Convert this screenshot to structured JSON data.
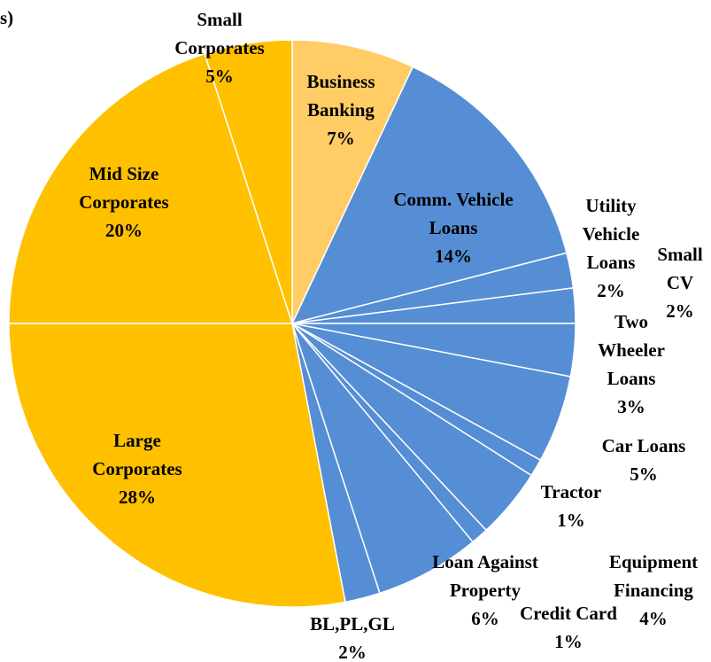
{
  "chart_data": {
    "type": "pie",
    "title": "s)",
    "categories": [
      "Business Banking",
      "Comm. Vehicle Loans",
      "Utility Vehicle Loans",
      "Small CV",
      "Two Wheeler Loans",
      "Car Loans",
      "Tractor",
      "Equipment Financing",
      "Credit Card",
      "Loan Against Property",
      "BL,PL,GL",
      "Large Corporates",
      "Mid Size Corporates",
      "Small Corporates"
    ],
    "values": [
      7,
      14,
      2,
      2,
      3,
      5,
      1,
      4,
      1,
      6,
      2,
      28,
      20,
      5
    ],
    "value_labels": [
      "7%",
      "14%",
      "2%",
      "2%",
      "3%",
      "5%",
      "1%",
      "4%",
      "1%",
      "6%",
      "2%",
      "28%",
      "20%",
      "5%"
    ],
    "colors": [
      "#FFCC66",
      "#558ED5",
      "#558ED5",
      "#558ED5",
      "#558ED5",
      "#558ED5",
      "#558ED5",
      "#558ED5",
      "#558ED5",
      "#558ED5",
      "#558ED5",
      "#FFC000",
      "#FFC000",
      "#FFC000"
    ]
  }
}
